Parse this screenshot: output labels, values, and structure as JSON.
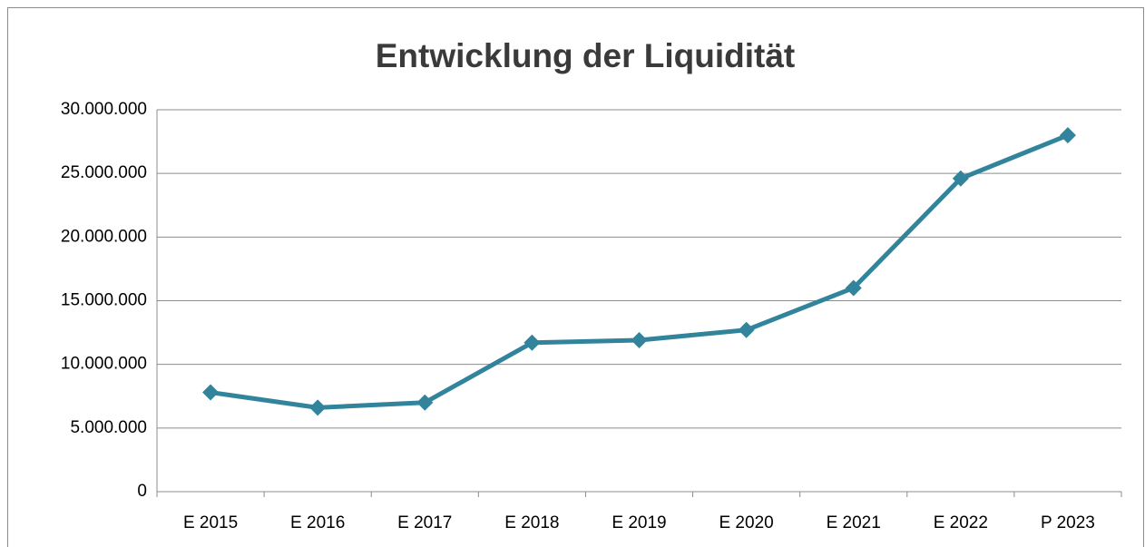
{
  "chart_data": {
    "type": "line",
    "title": "Entwicklung der Liquidität",
    "categories": [
      "E 2015",
      "E 2016",
      "E 2017",
      "E 2018",
      "E 2019",
      "E 2020",
      "E 2021",
      "E 2022",
      "P 2023"
    ],
    "series": [
      {
        "name": "Liquidität",
        "color": "#31849b",
        "values": [
          7800000,
          6600000,
          7000000,
          11700000,
          11900000,
          12700000,
          16000000,
          24600000,
          28000000
        ]
      }
    ],
    "ylim": [
      0,
      30000000
    ],
    "yticks": [
      0,
      {
        "value": 5000000,
        "label": "5.000.000"
      },
      {
        "value": 10000000,
        "label": "10.000.000"
      },
      {
        "value": 15000000,
        "label": "15.000.000"
      },
      {
        "value": 20000000,
        "label": "20.000.000"
      },
      {
        "value": 25000000,
        "label": "25.000.000"
      },
      {
        "value": 30000000,
        "label": "30.000.000"
      }
    ],
    "grid": true,
    "legend": false
  }
}
